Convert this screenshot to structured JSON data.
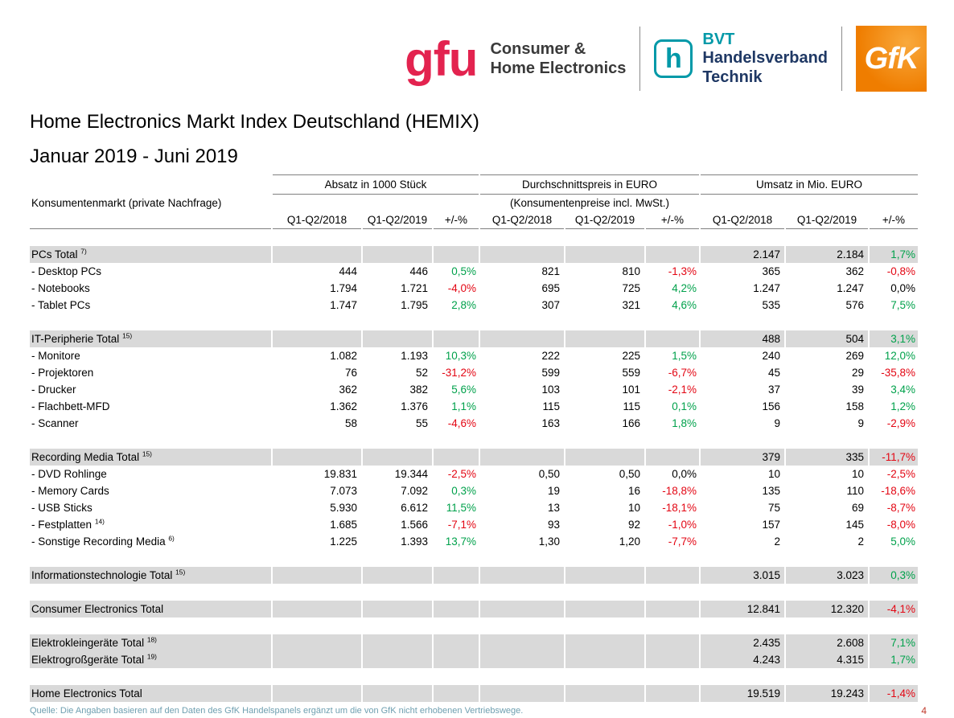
{
  "page": {
    "title": "Home Electronics Markt Index Deutschland (HEMIX)",
    "subtitle": "Januar 2019 - Juni 2019",
    "footer_source": "Quelle: Die Angaben basieren auf den Daten des GfK Handelspanels ergänzt um die von GfK nicht erhobenen Vertriebswege.",
    "page_number": "4"
  },
  "logos": {
    "gfu": {
      "wordmark": "gfu",
      "tagline": [
        "Consumer &",
        "Home Electronics"
      ],
      "color": "#e3234f"
    },
    "bvt": {
      "icon_letter": "h",
      "abbr": "BVT",
      "lines": [
        "Handelsverband",
        "Technik"
      ],
      "teal": "#0099a8",
      "navy": "#1f3864"
    },
    "gfk": {
      "wordmark": "GfK",
      "orange": "#ef7d00"
    }
  },
  "table": {
    "label_header": "Konsumentenmarkt (private Nachfrage)",
    "groups": [
      {
        "title": "Absatz in 1000 Stück",
        "subtitle": ""
      },
      {
        "title": "Durchschnittspreis in EURO",
        "subtitle": "(Konsumentenpreise incl. MwSt.)"
      },
      {
        "title": "Umsatz in Mio. EURO",
        "subtitle": ""
      }
    ],
    "sub_headers": [
      "Q1-Q2/2018",
      "Q1-Q2/2019",
      "+/-%"
    ],
    "colors": {
      "positive": "#00a14b",
      "negative": "#e30613",
      "section_bg": "#d9d9d9"
    },
    "rows": [
      {
        "type": "spacer"
      },
      {
        "type": "section",
        "label": "PCs Total",
        "sup": "7)",
        "cells": [
          "",
          "",
          "",
          "",
          "",
          "",
          "2.147",
          "2.184",
          "1,7%"
        ]
      },
      {
        "type": "item",
        "label": "- Desktop PCs",
        "cells": [
          "444",
          "446",
          "0,5%",
          "821",
          "810",
          "-1,3%",
          "365",
          "362",
          "-0,8%"
        ]
      },
      {
        "type": "item",
        "label": "- Notebooks",
        "cells": [
          "1.794",
          "1.721",
          "-4,0%",
          "695",
          "725",
          "4,2%",
          "1.247",
          "1.247",
          "0,0%"
        ]
      },
      {
        "type": "item",
        "label": "- Tablet PCs",
        "cells": [
          "1.747",
          "1.795",
          "2,8%",
          "307",
          "321",
          "4,6%",
          "535",
          "576",
          "7,5%"
        ]
      },
      {
        "type": "spacer"
      },
      {
        "type": "section",
        "label": "IT-Peripherie Total",
        "sup": "15)",
        "cells": [
          "",
          "",
          "",
          "",
          "",
          "",
          "488",
          "504",
          "3,1%"
        ]
      },
      {
        "type": "item",
        "label": "- Monitore",
        "cells": [
          "1.082",
          "1.193",
          "10,3%",
          "222",
          "225",
          "1,5%",
          "240",
          "269",
          "12,0%"
        ]
      },
      {
        "type": "item",
        "label": "- Projektoren",
        "cells": [
          "76",
          "52",
          "-31,2%",
          "599",
          "559",
          "-6,7%",
          "45",
          "29",
          "-35,8%"
        ]
      },
      {
        "type": "item",
        "label": "- Drucker",
        "cells": [
          "362",
          "382",
          "5,6%",
          "103",
          "101",
          "-2,1%",
          "37",
          "39",
          "3,4%"
        ]
      },
      {
        "type": "item",
        "label": "- Flachbett-MFD",
        "cells": [
          "1.362",
          "1.376",
          "1,1%",
          "115",
          "115",
          "0,1%",
          "156",
          "158",
          "1,2%"
        ]
      },
      {
        "type": "item",
        "label": "- Scanner",
        "cells": [
          "58",
          "55",
          "-4,6%",
          "163",
          "166",
          "1,8%",
          "9",
          "9",
          "-2,9%"
        ]
      },
      {
        "type": "spacer"
      },
      {
        "type": "section",
        "label": "Recording Media Total",
        "sup": "15)",
        "cells": [
          "",
          "",
          "",
          "",
          "",
          "",
          "379",
          "335",
          "-11,7%"
        ]
      },
      {
        "type": "item",
        "label": "- DVD Rohlinge",
        "cells": [
          "19.831",
          "19.344",
          "-2,5%",
          "0,50",
          "0,50",
          "0,0%",
          "10",
          "10",
          "-2,5%"
        ]
      },
      {
        "type": "item",
        "label": "- Memory Cards",
        "cells": [
          "7.073",
          "7.092",
          "0,3%",
          "19",
          "16",
          "-18,8%",
          "135",
          "110",
          "-18,6%"
        ]
      },
      {
        "type": "item",
        "label": "- USB Sticks",
        "cells": [
          "5.930",
          "6.612",
          "11,5%",
          "13",
          "10",
          "-18,1%",
          "75",
          "69",
          "-8,7%"
        ]
      },
      {
        "type": "item",
        "label": "- Festplatten",
        "sup": "14)",
        "cells": [
          "1.685",
          "1.566",
          "-7,1%",
          "93",
          "92",
          "-1,0%",
          "157",
          "145",
          "-8,0%"
        ]
      },
      {
        "type": "item",
        "label": "- Sonstige Recording Media",
        "sup": "6)",
        "cells": [
          "1.225",
          "1.393",
          "13,7%",
          "1,30",
          "1,20",
          "-7,7%",
          "2",
          "2",
          "5,0%"
        ]
      },
      {
        "type": "spacer"
      },
      {
        "type": "section",
        "label": "Informationstechnologie Total",
        "sup": "15)",
        "cells": [
          "",
          "",
          "",
          "",
          "",
          "",
          "3.015",
          "3.023",
          "0,3%"
        ]
      },
      {
        "type": "spacer"
      },
      {
        "type": "section",
        "label": "Consumer Electronics Total",
        "cells": [
          "",
          "",
          "",
          "",
          "",
          "",
          "12.841",
          "12.320",
          "-4,1%"
        ]
      },
      {
        "type": "spacer"
      },
      {
        "type": "section",
        "label": "Elektrokleingeräte Total",
        "sup": "18)",
        "cells": [
          "",
          "",
          "",
          "",
          "",
          "",
          "2.435",
          "2.608",
          "7,1%"
        ]
      },
      {
        "type": "section",
        "label": "Elektrogroßgeräte Total",
        "sup": "19)",
        "cells": [
          "",
          "",
          "",
          "",
          "",
          "",
          "4.243",
          "4.315",
          "1,7%"
        ]
      },
      {
        "type": "spacer"
      },
      {
        "type": "section",
        "label": "Home Electronics Total",
        "cells": [
          "",
          "",
          "",
          "",
          "",
          "",
          "19.519",
          "19.243",
          "-1,4%"
        ]
      }
    ]
  }
}
